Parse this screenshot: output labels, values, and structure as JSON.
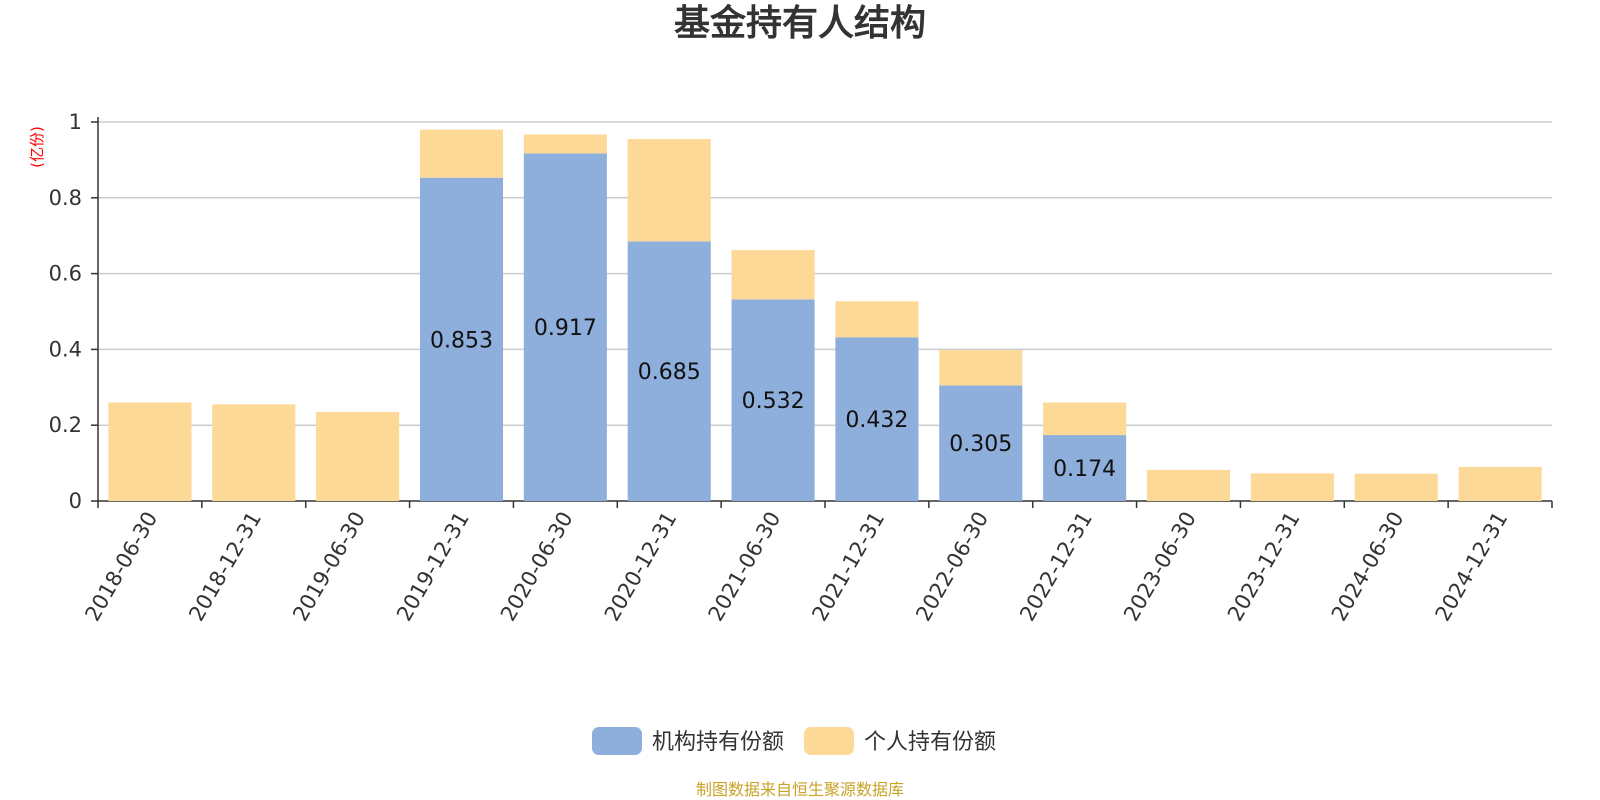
{
  "chart_data": {
    "type": "bar",
    "stacked": true,
    "title": "基金持有人结构",
    "unit_label": "(亿份)",
    "categories": [
      "2018-06-30",
      "2018-12-31",
      "2019-06-30",
      "2019-12-31",
      "2020-06-30",
      "2020-12-31",
      "2021-06-30",
      "2021-12-31",
      "2022-06-30",
      "2022-12-31",
      "2023-06-30",
      "2023-12-31",
      "2024-06-30",
      "2024-12-31"
    ],
    "series": [
      {
        "name": "机构持有份额",
        "color": "#8eaedb",
        "values": [
          0,
          0,
          0,
          0.853,
          0.917,
          0.685,
          0.532,
          0.432,
          0.305,
          0.174,
          0,
          0,
          0,
          0
        ],
        "labels": [
          "",
          "",
          "",
          "0.853",
          "0.917",
          "0.685",
          "0.532",
          "0.432",
          "0.305",
          "0.174",
          "",
          "",
          "",
          ""
        ]
      },
      {
        "name": "个人持有份额",
        "color": "#fdd998",
        "values": [
          0.26,
          0.255,
          0.235,
          0.127,
          0.05,
          0.27,
          0.13,
          0.095,
          0.093,
          0.086,
          0.082,
          0.073,
          0.072,
          0.09
        ]
      }
    ],
    "ylim": [
      0,
      1
    ],
    "yticks": [
      0,
      0.2,
      0.4,
      0.6,
      0.8,
      1
    ],
    "ytick_labels": [
      "0",
      "0.2",
      "0.4",
      "0.6",
      "0.8",
      "1"
    ],
    "grid": true,
    "legend_position": "bottom-center"
  },
  "colors": {
    "title": "#333333",
    "unit": "#ff0000",
    "source": "#c9a227",
    "grid": "#cccccc",
    "axis": "#333333"
  },
  "source_note": "制图数据来自恒生聚源数据库"
}
